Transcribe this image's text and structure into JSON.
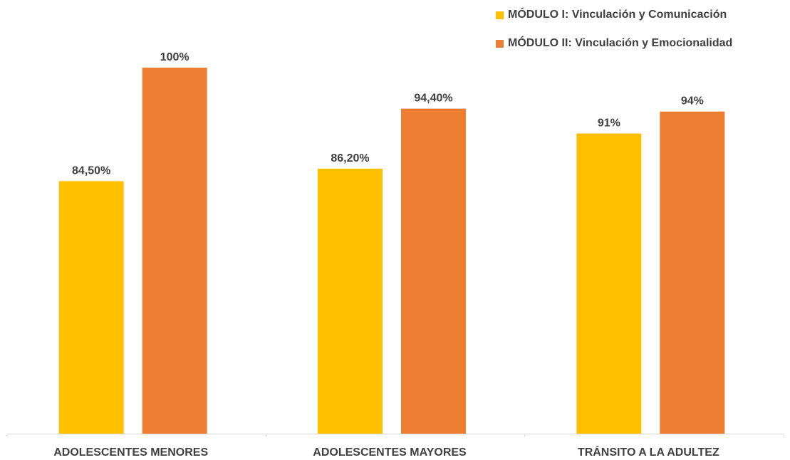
{
  "chart_data": {
    "type": "bar",
    "categories": [
      "ADOLESCENTES MENORES",
      "ADOLESCENTES MAYORES",
      "TRÁNSITO A LA ADULTEZ"
    ],
    "series": [
      {
        "name": "MÓDULO I: Vinculación y Comunicación",
        "values": [
          84.5,
          86.2,
          91
        ],
        "labels": [
          "84,50%",
          "86,20%",
          "91%"
        ],
        "color": "#FFC000"
      },
      {
        "name": "MÓDULO II: Vinculación y Emocionalidad",
        "values": [
          100,
          94.4,
          94
        ],
        "labels": [
          "100%",
          "94,40%",
          "94%"
        ],
        "color": "#ED7D31"
      }
    ],
    "ylim": [
      50,
      100
    ],
    "grid": false,
    "legend_position": "top-right",
    "axis_line_color": "#D9D9D9"
  }
}
